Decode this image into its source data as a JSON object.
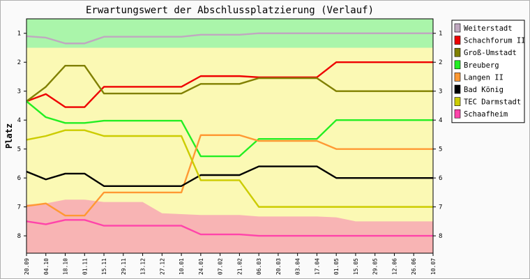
{
  "chart_data": {
    "type": "line",
    "title": "Erwartungswert der Abschlussplatzierung (Verlauf)",
    "ylabel": "Platz",
    "xlabel": "",
    "ylim": [
      0.5,
      8.6
    ],
    "y_inverted": true,
    "y_ticks": [
      "1",
      "2",
      "3",
      "4",
      "5",
      "6",
      "7",
      "8"
    ],
    "x": [
      "20.09",
      "04.10",
      "18.10",
      "01.11",
      "15.11",
      "29.11",
      "13.12",
      "27.12",
      "10.01",
      "24.01",
      "07.02",
      "21.02",
      "06.03",
      "20.03",
      "03.04",
      "17.04",
      "01.05",
      "15.05",
      "29.05",
      "12.06",
      "26.06",
      "10.07"
    ],
    "legend_position": "right",
    "bands": {
      "promotion": {
        "from": 0.5,
        "to": 1.5,
        "color": "#aaf5aa"
      },
      "middle": {
        "color": "#fbf9b4"
      },
      "relegation": {
        "to": 8.6,
        "color": "#f8b4b4",
        "boundary": [
          6.92,
          6.88,
          6.75,
          6.75,
          6.83,
          6.83,
          6.83,
          7.22,
          7.25,
          7.28,
          7.28,
          7.28,
          7.33,
          7.33,
          7.33,
          7.33,
          7.36,
          7.5,
          7.5,
          7.5,
          7.5,
          7.5
        ]
      }
    },
    "series": [
      {
        "name": "Weiterstadt",
        "color": "#c0a8c0",
        "values": [
          1.1,
          1.15,
          1.35,
          1.35,
          1.12,
          1.12,
          1.12,
          1.12,
          1.12,
          1.05,
          1.05,
          1.05,
          1.0,
          1.0,
          1.0,
          1.0,
          1.0,
          1.0,
          1.0,
          1.0,
          1.0,
          1.0
        ]
      },
      {
        "name": "Schachforum II",
        "color": "#ee0000",
        "values": [
          3.35,
          3.1,
          3.55,
          3.55,
          2.85,
          2.85,
          2.85,
          2.85,
          2.85,
          2.48,
          2.48,
          2.48,
          2.52,
          2.52,
          2.52,
          2.52,
          2.0,
          2.0,
          2.0,
          2.0,
          2.0,
          2.0
        ]
      },
      {
        "name": "Groß-Umstadt",
        "color": "#808000",
        "values": [
          3.35,
          2.85,
          2.12,
          2.12,
          3.08,
          3.08,
          3.08,
          3.08,
          3.08,
          2.75,
          2.75,
          2.75,
          2.55,
          2.55,
          2.55,
          2.55,
          3.0,
          3.0,
          3.0,
          3.0,
          3.0,
          3.0
        ]
      },
      {
        "name": "Breuberg",
        "color": "#22ee22",
        "values": [
          3.35,
          3.9,
          4.1,
          4.1,
          4.02,
          4.02,
          4.02,
          4.02,
          4.02,
          5.25,
          5.25,
          5.25,
          4.65,
          4.65,
          4.65,
          4.65,
          4.0,
          4.0,
          4.0,
          4.0,
          4.0,
          4.0
        ]
      },
      {
        "name": "Langen II",
        "color": "#ff9933",
        "values": [
          6.97,
          6.88,
          7.3,
          7.3,
          6.5,
          6.5,
          6.5,
          6.5,
          6.5,
          4.52,
          4.52,
          4.52,
          4.72,
          4.72,
          4.72,
          4.72,
          5.0,
          5.0,
          5.0,
          5.0,
          5.0,
          5.0
        ]
      },
      {
        "name": "Bad König",
        "color": "#000000",
        "values": [
          5.78,
          6.05,
          5.85,
          5.85,
          6.28,
          6.28,
          6.28,
          6.28,
          6.28,
          5.9,
          5.9,
          5.9,
          5.6,
          5.6,
          5.6,
          5.6,
          6.0,
          6.0,
          6.0,
          6.0,
          6.0,
          6.0
        ]
      },
      {
        "name": "TEC Darmstadt",
        "color": "#cccc00",
        "values": [
          4.68,
          4.55,
          4.35,
          4.35,
          4.55,
          4.55,
          4.55,
          4.55,
          4.55,
          6.08,
          6.08,
          6.08,
          7.0,
          7.0,
          7.0,
          7.0,
          7.0,
          7.0,
          7.0,
          7.0,
          7.0,
          7.0
        ]
      },
      {
        "name": "Schaafheim",
        "color": "#ff44aa",
        "values": [
          7.5,
          7.6,
          7.45,
          7.45,
          7.65,
          7.65,
          7.65,
          7.65,
          7.65,
          7.95,
          7.95,
          7.95,
          8.0,
          8.0,
          8.0,
          8.0,
          8.0,
          8.0,
          8.0,
          8.0,
          8.0,
          8.0
        ]
      }
    ]
  }
}
